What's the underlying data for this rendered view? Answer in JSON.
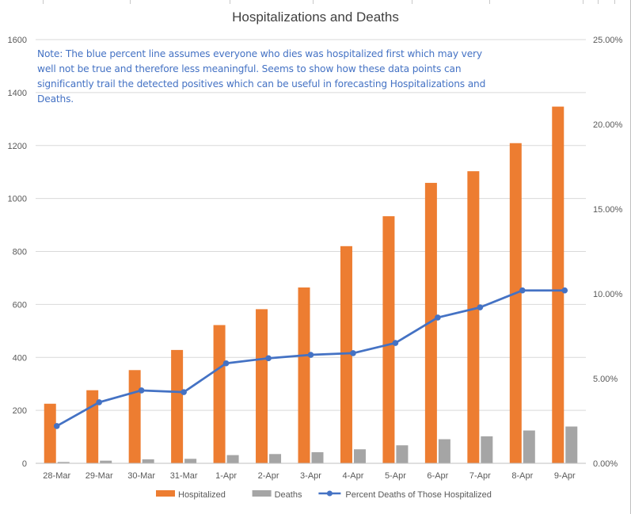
{
  "chart_data": {
    "type": "bar",
    "title": "Hospitalizations and Deaths",
    "note": "Note: The blue percent line assumes everyone who dies was hospitalized first which may very well not be true and therefore less meaningful. Seems to show how these data points can significantly trail the detected positives which can be useful in forecasting Hospitalizations and Deaths.",
    "categories": [
      "28-Mar",
      "29-Mar",
      "30-Mar",
      "31-Mar",
      "1-Apr",
      "2-Apr",
      "3-Apr",
      "4-Apr",
      "5-Apr",
      "6-Apr",
      "7-Apr",
      "8-Apr",
      "9-Apr"
    ],
    "series": [
      {
        "name": "Hospitalized",
        "type": "bar",
        "axis": "primary",
        "color": "#ed7d31",
        "values": [
          225,
          276,
          352,
          428,
          522,
          582,
          664,
          820,
          933,
          1059,
          1103,
          1209,
          1347
        ]
      },
      {
        "name": "Deaths",
        "type": "bar",
        "axis": "primary",
        "color": "#a5a5a5",
        "values": [
          5,
          10,
          15,
          17,
          31,
          35,
          42,
          53,
          68,
          91,
          102,
          124,
          139
        ]
      },
      {
        "name": "Percent Deaths of Those Hospitalized",
        "type": "line",
        "axis": "secondary",
        "color": "#4472c4",
        "values": [
          0.022,
          0.036,
          0.043,
          0.042,
          0.059,
          0.062,
          0.064,
          0.065,
          0.071,
          0.086,
          0.092,
          0.102,
          0.102
        ]
      }
    ],
    "ylim": [
      0,
      1600
    ],
    "y_ticks": [
      "0",
      "200",
      "400",
      "600",
      "800",
      "1000",
      "1200",
      "1400",
      "1600"
    ],
    "y2lim": [
      0,
      0.25
    ],
    "y2_ticks": [
      "0.00%",
      "5.00%",
      "10.00%",
      "15.00%",
      "20.00%",
      "25.00%"
    ],
    "grid": true,
    "legend": "bottom",
    "xlabel": "",
    "ylabel": "",
    "y2label": ""
  }
}
